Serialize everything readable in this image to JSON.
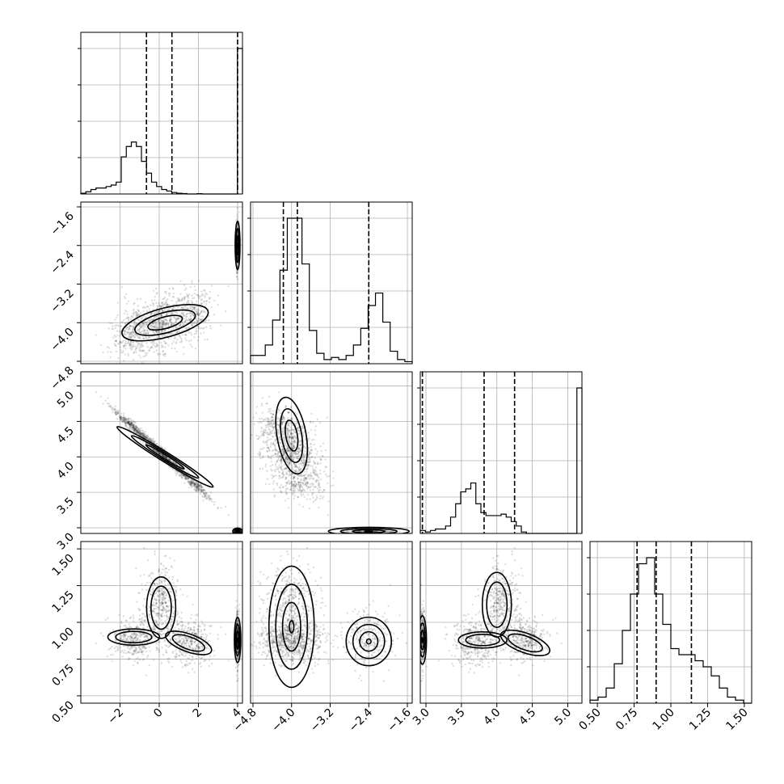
{
  "chart_data": {
    "type": "corner",
    "parameters": [
      {
        "ticks": [
          -2,
          0,
          2,
          4
        ],
        "tick_labels": [
          "−2",
          "0",
          "2",
          "4"
        ],
        "range": [
          -4.0,
          4.25
        ],
        "quantiles": [
          -0.65,
          0.65,
          4.0
        ],
        "hist": [
          0.5,
          1.5,
          3,
          4,
          4,
          5,
          6,
          8,
          25,
          32,
          35,
          32,
          22,
          14,
          8,
          5,
          3,
          2,
          1,
          0.5,
          0.3,
          0,
          0,
          0.2,
          0,
          0,
          0,
          0,
          0,
          0,
          0,
          98
        ]
      },
      {
        "ticks": [
          -4.8,
          -4.0,
          -3.2,
          -2.4,
          -1.6
        ],
        "tick_labels": [
          "−4.8",
          "−4.0",
          "−3.2",
          "−2.4",
          "−1.6"
        ],
        "range": [
          -4.85,
          -1.5
        ],
        "quantiles": [
          -4.17,
          -3.88,
          -2.4
        ],
        "hist": [
          4,
          4,
          9,
          21,
          45,
          70,
          70,
          48,
          16,
          5,
          2,
          3,
          2,
          4,
          9,
          17,
          28,
          34,
          20,
          6,
          2,
          1
        ]
      },
      {
        "ticks": [
          3.0,
          3.5,
          4.0,
          4.5,
          5.0
        ],
        "tick_labels": [
          "3.0",
          "3.5",
          "4.0",
          "4.5",
          "5.0"
        ],
        "range": [
          2.92,
          5.2
        ],
        "quantiles": [
          2.95,
          3.82,
          4.25
        ],
        "hist": [
          2,
          1,
          2,
          3,
          3,
          5,
          11,
          20,
          28,
          30,
          34,
          20,
          14,
          12,
          12,
          12,
          13,
          11,
          8,
          5,
          1,
          0,
          0,
          0,
          0,
          0,
          0,
          0,
          0,
          0,
          0,
          98
        ]
      },
      {
        "ticks": [
          0.5,
          0.75,
          1.0,
          1.25,
          1.5
        ],
        "tick_labels": [
          "0.50",
          "0.75",
          "1.00",
          "1.25",
          "1.50"
        ],
        "range": [
          0.45,
          1.55
        ],
        "quantiles": [
          0.77,
          0.9,
          1.14
        ],
        "hist": [
          1,
          2,
          5,
          13,
          24,
          36,
          46,
          48,
          36,
          26,
          18,
          16,
          16,
          14,
          12,
          9,
          5,
          2,
          1,
          0
        ]
      }
    ],
    "joint_modes": {
      "p0": [
        {
          "w": 0.8,
          "mx": 0.3,
          "sx": 1.05,
          "my": 0.0,
          "sy": 0.0,
          "corr": 0.0
        },
        {
          "w": 0.2,
          "mx": 4.0,
          "sx": 0.04,
          "my": 0.0,
          "sy": 0.0,
          "corr": 0.0
        }
      ],
      "x1_given_x0": [
        {
          "mx": 0.3,
          "slope": 0.11,
          "intercept": -4.0,
          "sd": 0.28
        },
        {
          "mx": 4.0,
          "slope": 0.0,
          "intercept": -2.4,
          "sd": 0.25
        }
      ],
      "x2_given_x0": [
        {
          "mx": 0.3,
          "slope": -0.255,
          "intercept": 4.0,
          "sd": 0.04
        },
        {
          "mx": 4.0,
          "slope": 0.0,
          "intercept": 2.95,
          "sd": 0.02
        }
      ],
      "x3_lobes": [
        {
          "cx0": -1.4,
          "c3": 0.88,
          "sx": 0.55,
          "sy": 0.06
        },
        {
          "cx0": 0.1,
          "c3": 1.15,
          "sx": 0.45,
          "sy": 0.12
        },
        {
          "cx0": 1.6,
          "c3": 0.88,
          "sx": 0.55,
          "sy": 0.07
        },
        {
          "cx0": 4.0,
          "c3": 0.88,
          "sx": 0.03,
          "sy": 0.1
        }
      ]
    }
  }
}
